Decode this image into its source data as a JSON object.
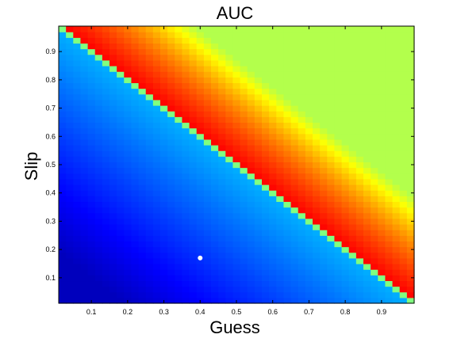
{
  "chart_data": {
    "type": "heatmap",
    "title": "AUC",
    "xlabel": "Guess",
    "ylabel": "Slip",
    "xlim": [
      0.01,
      0.99
    ],
    "ylim": [
      0.01,
      0.99
    ],
    "grid_resolution": 0.02,
    "x_ticks": [
      "0.1",
      "0.2",
      "0.3",
      "0.4",
      "0.5",
      "0.6",
      "0.7",
      "0.8",
      "0.9"
    ],
    "y_ticks": [
      "0.1",
      "0.2",
      "0.3",
      "0.4",
      "0.5",
      "0.6",
      "0.7",
      "0.8",
      "0.9"
    ],
    "colormap": "jet",
    "diagonal": "guess + slip = 1",
    "highlight_point": {
      "x": 0.4,
      "y": 0.17,
      "color": "#ffffff"
    }
  }
}
